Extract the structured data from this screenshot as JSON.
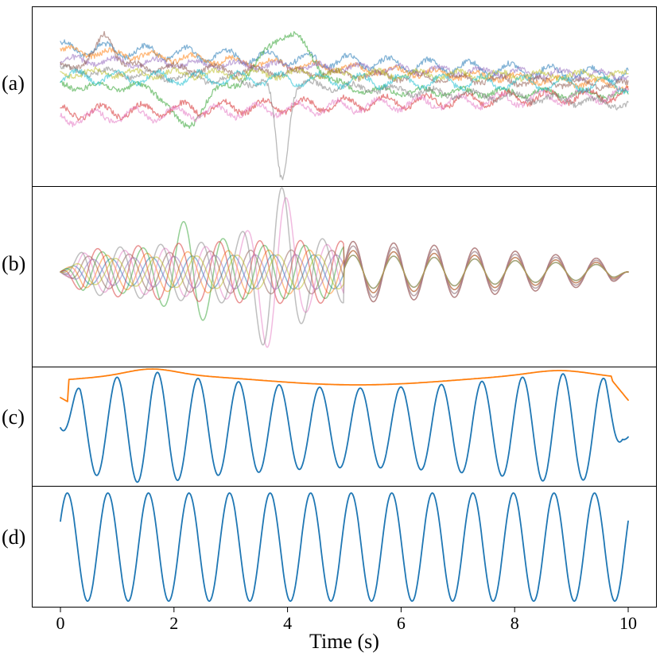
{
  "chart_data": {
    "type": "line",
    "xlabel": "Time (s)",
    "xlim": [
      0,
      10
    ],
    "xticks": [
      "0",
      "2",
      "4",
      "6",
      "8",
      "10"
    ],
    "panels": [
      {
        "label": "(a)",
        "series": [
          {
            "color": "#1f77b4",
            "opacity": 0.55
          },
          {
            "color": "#ff7f0e",
            "opacity": 0.55
          },
          {
            "color": "#2ca02c",
            "opacity": 0.55
          },
          {
            "color": "#d62728",
            "opacity": 0.55
          },
          {
            "color": "#9467bd",
            "opacity": 0.55
          },
          {
            "color": "#8c564b",
            "opacity": 0.55
          },
          {
            "color": "#e377c2",
            "opacity": 0.55
          },
          {
            "color": "#7f7f7f",
            "opacity": 0.55
          },
          {
            "color": "#bcbd22",
            "opacity": 0.55
          },
          {
            "color": "#17becf",
            "opacity": 0.55
          }
        ]
      },
      {
        "label": "(b)",
        "series": [
          {
            "color": "#1f77b4",
            "opacity": 0.5
          },
          {
            "color": "#ff7f0e",
            "opacity": 0.5
          },
          {
            "color": "#2ca02c",
            "opacity": 0.5
          },
          {
            "color": "#d62728",
            "opacity": 0.5
          },
          {
            "color": "#9467bd",
            "opacity": 0.5
          },
          {
            "color": "#8c564b",
            "opacity": 0.5
          },
          {
            "color": "#e377c2",
            "opacity": 0.5
          },
          {
            "color": "#7f7f7f",
            "opacity": 0.5
          },
          {
            "color": "#bcbd22",
            "opacity": 0.5
          }
        ]
      },
      {
        "label": "(c)",
        "series": [
          {
            "color": "#1f77b4",
            "opacity": 1
          },
          {
            "color": "#ff7f0e",
            "opacity": 1
          }
        ]
      },
      {
        "label": "(d)",
        "series": [
          {
            "color": "#1f77b4",
            "opacity": 1
          }
        ]
      }
    ],
    "oscillation_frequency_hz": 1.4,
    "grid": false
  }
}
